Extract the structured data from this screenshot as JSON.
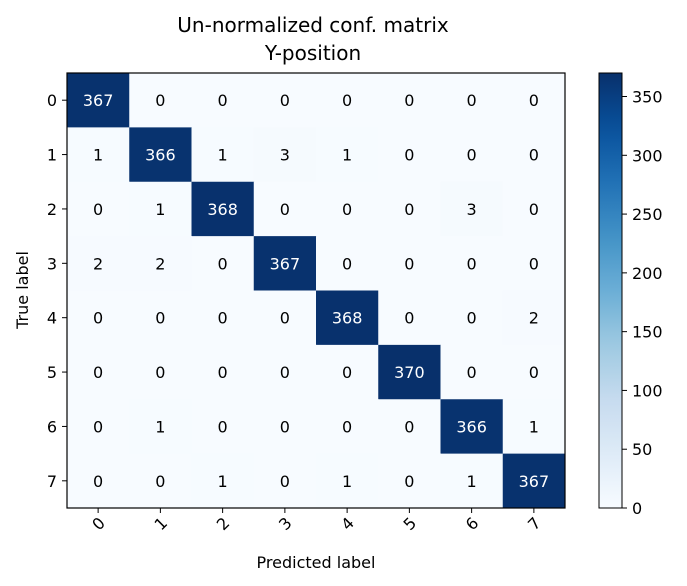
{
  "chart_data": {
    "type": "heatmap",
    "title": "Un-normalized conf. matrix",
    "subtitle": "Y-position",
    "xlabel": "Predicted label",
    "ylabel": "True label",
    "x_categories": [
      "0",
      "1",
      "2",
      "3",
      "4",
      "5",
      "6",
      "7"
    ],
    "y_categories": [
      "0",
      "1",
      "2",
      "3",
      "4",
      "5",
      "6",
      "7"
    ],
    "values": [
      [
        367,
        0,
        0,
        0,
        0,
        0,
        0,
        0
      ],
      [
        1,
        366,
        1,
        3,
        1,
        0,
        0,
        0
      ],
      [
        0,
        1,
        368,
        0,
        0,
        0,
        3,
        0
      ],
      [
        2,
        2,
        0,
        367,
        0,
        0,
        0,
        0
      ],
      [
        0,
        0,
        0,
        0,
        368,
        0,
        0,
        2
      ],
      [
        0,
        0,
        0,
        0,
        0,
        370,
        0,
        0
      ],
      [
        0,
        1,
        0,
        0,
        0,
        0,
        366,
        1
      ],
      [
        0,
        0,
        1,
        0,
        1,
        0,
        1,
        367
      ]
    ],
    "colormap": "Blues",
    "color_range": [
      0,
      370
    ],
    "colorbar_ticks": [
      0,
      50,
      100,
      150,
      200,
      250,
      300,
      350
    ],
    "grid": false,
    "colors": {
      "low": "#f7fbff",
      "high": "#08306b",
      "text_dark": "#000000",
      "text_light": "#ffffff"
    }
  }
}
